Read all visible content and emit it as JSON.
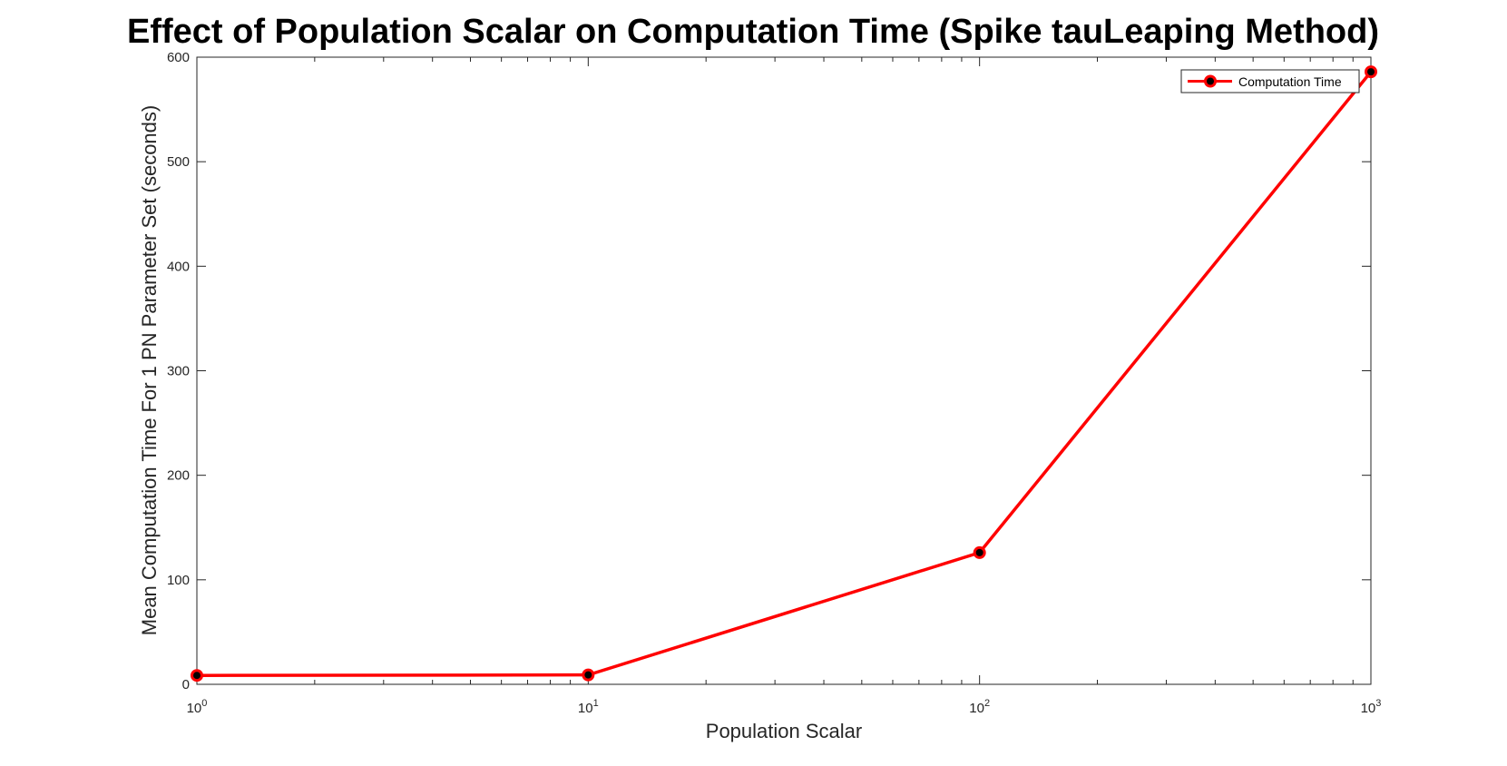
{
  "chart_data": {
    "type": "line",
    "title": "Effect of Population Scalar on Computation Time (Spike tauLeaping Method)",
    "xlabel": "Population Scalar",
    "ylabel": "Mean Computation Time For 1 PN Parameter Set (seconds)",
    "xscale": "log",
    "xlim": [
      1,
      1000
    ],
    "ylim": [
      0,
      600
    ],
    "x_ticks": [
      {
        "base": "10",
        "exp": "0",
        "value": 1
      },
      {
        "base": "10",
        "exp": "1",
        "value": 10
      },
      {
        "base": "10",
        "exp": "2",
        "value": 100
      },
      {
        "base": "10",
        "exp": "3",
        "value": 1000
      }
    ],
    "y_ticks": [
      "0",
      "100",
      "200",
      "300",
      "400",
      "500",
      "600"
    ],
    "grid": false,
    "legend_position": "top-right",
    "series": [
      {
        "name": "Computation Time",
        "color": "#ff0000",
        "marker_fill": "#000000",
        "x": [
          1,
          10,
          100,
          1000
        ],
        "values": [
          8.5,
          9,
          126,
          586
        ]
      }
    ]
  }
}
